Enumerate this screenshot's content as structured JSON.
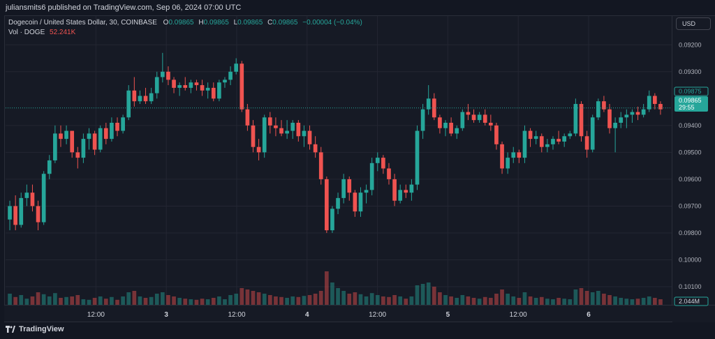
{
  "header": {
    "published": "juliansmits6 published on TradingView.com, Sep 06, 2024 07:00 UTC"
  },
  "legend": {
    "symbol": "Dogecoin / United States Dollar, 30, COINBASE",
    "o_label": "O",
    "o_value": "0.09865",
    "h_label": "H",
    "h_value": "0.09865",
    "l_label": "L",
    "l_value": "0.09865",
    "c_label": "C",
    "c_value": "0.09865",
    "change": "−0.00004 (−0.04%)",
    "vol_label": "Vol · DOGE",
    "vol_value": "52.241K"
  },
  "currency_button": "USD",
  "price_axis": {
    "ticks": [
      "0.10100",
      "0.10000",
      "0.09800",
      "0.09700",
      "0.09600",
      "0.09500",
      "0.09400",
      "0.09300",
      "0.09200"
    ],
    "label_0875": "0.09875",
    "last_price": "0.09865",
    "countdown": "29:55",
    "volume_badge": "2.044M"
  },
  "time_axis": {
    "ticks": [
      "12:00",
      "3",
      "12:00",
      "4",
      "12:00",
      "5",
      "12:00",
      "6"
    ]
  },
  "brand": "TradingView",
  "colors": {
    "up": "#26a69a",
    "down": "#ef5350",
    "background": "#161a25",
    "grid": "#232632"
  },
  "chart_data": {
    "type": "candlestick",
    "title": "Dogecoin / United States Dollar, 30, COINBASE",
    "y_ticks": [
      0.092,
      0.093,
      0.094,
      0.095,
      0.096,
      0.097,
      0.098,
      0.1,
      0.101
    ],
    "ylim": [
      0.0913,
      0.1015
    ],
    "x_tick_labels": [
      "12:00",
      "3",
      "12:00",
      "4",
      "12:00",
      "5",
      "12:00",
      "6"
    ],
    "x_tick_index": [
      12,
      36,
      60,
      84,
      108,
      132,
      156,
      180
    ],
    "last_price": 0.09865,
    "grid": true,
    "candles": [
      [
        0.0945,
        0.0952,
        0.0941,
        0.095,
        40
      ],
      [
        0.095,
        0.0954,
        0.0941,
        0.0943,
        28
      ],
      [
        0.0943,
        0.0955,
        0.0942,
        0.0953,
        35
      ],
      [
        0.0953,
        0.0958,
        0.095,
        0.0955,
        22
      ],
      [
        0.0955,
        0.0958,
        0.0948,
        0.095,
        30
      ],
      [
        0.095,
        0.0952,
        0.0941,
        0.0944,
        45
      ],
      [
        0.0944,
        0.0963,
        0.0943,
        0.0962,
        38
      ],
      [
        0.0962,
        0.0969,
        0.096,
        0.0967,
        30
      ],
      [
        0.0967,
        0.098,
        0.0966,
        0.0977,
        42
      ],
      [
        0.0977,
        0.098,
        0.0972,
        0.0975,
        25
      ],
      [
        0.0975,
        0.098,
        0.0973,
        0.0978,
        28
      ],
      [
        0.0978,
        0.0978,
        0.0968,
        0.097,
        30
      ],
      [
        0.097,
        0.0972,
        0.0964,
        0.0968,
        35
      ],
      [
        0.0968,
        0.0977,
        0.0966,
        0.0975,
        20
      ],
      [
        0.0975,
        0.0979,
        0.0971,
        0.0977,
        18
      ],
      [
        0.0977,
        0.0978,
        0.0969,
        0.0971,
        25
      ],
      [
        0.0971,
        0.098,
        0.097,
        0.0979,
        30
      ],
      [
        0.0979,
        0.0981,
        0.0973,
        0.0975,
        22
      ],
      [
        0.0975,
        0.0983,
        0.0974,
        0.0981,
        28
      ],
      [
        0.0981,
        0.0983,
        0.0976,
        0.0978,
        18
      ],
      [
        0.0978,
        0.0984,
        0.0977,
        0.0983,
        30
      ],
      [
        0.0983,
        0.0995,
        0.0982,
        0.0993,
        45
      ],
      [
        0.0993,
        0.0998,
        0.0987,
        0.0989,
        50
      ],
      [
        0.0989,
        0.0993,
        0.0988,
        0.0991,
        30
      ],
      [
        0.0991,
        0.0994,
        0.0988,
        0.0989,
        25
      ],
      [
        0.0989,
        0.0994,
        0.0988,
        0.0992,
        28
      ],
      [
        0.0992,
        0.1,
        0.099,
        0.0998,
        40
      ],
      [
        0.0998,
        0.1007,
        0.0996,
        0.1,
        45
      ],
      [
        0.1,
        0.1002,
        0.0995,
        0.0997,
        35
      ],
      [
        0.0997,
        0.0998,
        0.0992,
        0.0994,
        30
      ],
      [
        0.0994,
        0.0996,
        0.0991,
        0.0995,
        25
      ],
      [
        0.0995,
        0.0998,
        0.0993,
        0.0994,
        22
      ],
      [
        0.0994,
        0.0997,
        0.0992,
        0.0996,
        20
      ],
      [
        0.0996,
        0.0997,
        0.0993,
        0.0995,
        18
      ],
      [
        0.0995,
        0.0997,
        0.0991,
        0.0993,
        22
      ],
      [
        0.0993,
        0.0996,
        0.099,
        0.0994,
        20
      ],
      [
        0.0994,
        0.0996,
        0.0989,
        0.099,
        25
      ],
      [
        0.099,
        0.0997,
        0.0989,
        0.0996,
        30
      ],
      [
        0.0996,
        0.0998,
        0.0994,
        0.0997,
        20
      ],
      [
        0.0997,
        0.1002,
        0.0995,
        0.1,
        35
      ],
      [
        0.1,
        0.1005,
        0.0999,
        0.1003,
        40
      ],
      [
        0.1003,
        0.1004,
        0.0985,
        0.0986,
        60
      ],
      [
        0.0986,
        0.0988,
        0.0978,
        0.098,
        55
      ],
      [
        0.098,
        0.0982,
        0.097,
        0.0972,
        50
      ],
      [
        0.0972,
        0.0975,
        0.0967,
        0.097,
        45
      ],
      [
        0.097,
        0.0984,
        0.0968,
        0.0983,
        40
      ],
      [
        0.0983,
        0.0985,
        0.0977,
        0.098,
        35
      ],
      [
        0.098,
        0.0983,
        0.0976,
        0.0979,
        30
      ],
      [
        0.0979,
        0.0982,
        0.0976,
        0.0977,
        28
      ],
      [
        0.0977,
        0.0982,
        0.0975,
        0.0978,
        25
      ],
      [
        0.0978,
        0.0982,
        0.0975,
        0.0981,
        30
      ],
      [
        0.0981,
        0.0982,
        0.0974,
        0.0976,
        28
      ],
      [
        0.0976,
        0.098,
        0.0972,
        0.0978,
        32
      ],
      [
        0.0978,
        0.098,
        0.0971,
        0.0973,
        35
      ],
      [
        0.0973,
        0.0976,
        0.0968,
        0.097,
        40
      ],
      [
        0.097,
        0.0972,
        0.0958,
        0.096,
        50
      ],
      [
        0.096,
        0.0961,
        0.094,
        0.0941,
        120
      ],
      [
        0.0941,
        0.095,
        0.094,
        0.0949,
        80
      ],
      [
        0.0949,
        0.0955,
        0.0947,
        0.0953,
        60
      ],
      [
        0.0953,
        0.0962,
        0.0951,
        0.096,
        50
      ],
      [
        0.096,
        0.0961,
        0.0952,
        0.0955,
        40
      ],
      [
        0.0955,
        0.0956,
        0.0946,
        0.0948,
        45
      ],
      [
        0.0948,
        0.0957,
        0.0946,
        0.0955,
        38
      ],
      [
        0.0955,
        0.0958,
        0.0951,
        0.0956,
        30
      ],
      [
        0.0956,
        0.0968,
        0.0954,
        0.0966,
        42
      ],
      [
        0.0966,
        0.097,
        0.0963,
        0.0968,
        35
      ],
      [
        0.0968,
        0.0969,
        0.0962,
        0.0964,
        30
      ],
      [
        0.0964,
        0.0966,
        0.0958,
        0.096,
        28
      ],
      [
        0.096,
        0.0962,
        0.095,
        0.0952,
        35
      ],
      [
        0.0952,
        0.0958,
        0.0951,
        0.0956,
        30
      ],
      [
        0.0956,
        0.0958,
        0.0953,
        0.0955,
        22
      ],
      [
        0.0955,
        0.096,
        0.0952,
        0.0958,
        30
      ],
      [
        0.0958,
        0.098,
        0.0956,
        0.0978,
        70
      ],
      [
        0.0978,
        0.0988,
        0.0975,
        0.0986,
        75
      ],
      [
        0.0986,
        0.0995,
        0.0984,
        0.099,
        80
      ],
      [
        0.099,
        0.0992,
        0.0982,
        0.0983,
        65
      ],
      [
        0.0983,
        0.0984,
        0.0977,
        0.0979,
        45
      ],
      [
        0.0979,
        0.0982,
        0.0976,
        0.0981,
        35
      ],
      [
        0.0981,
        0.0983,
        0.0976,
        0.0977,
        30
      ],
      [
        0.0977,
        0.098,
        0.0975,
        0.0979,
        25
      ],
      [
        0.0979,
        0.0986,
        0.0978,
        0.0985,
        35
      ],
      [
        0.0985,
        0.0988,
        0.0982,
        0.0984,
        30
      ],
      [
        0.0984,
        0.0986,
        0.0981,
        0.0982,
        25
      ],
      [
        0.0982,
        0.0985,
        0.0981,
        0.0984,
        22
      ],
      [
        0.0984,
        0.0986,
        0.098,
        0.0981,
        28
      ],
      [
        0.0981,
        0.0984,
        0.0978,
        0.098,
        25
      ],
      [
        0.098,
        0.0981,
        0.0971,
        0.0973,
        40
      ],
      [
        0.0973,
        0.0974,
        0.0962,
        0.0964,
        55
      ],
      [
        0.0964,
        0.097,
        0.0962,
        0.0968,
        40
      ],
      [
        0.0968,
        0.0972,
        0.0966,
        0.097,
        30
      ],
      [
        0.097,
        0.0971,
        0.0966,
        0.0968,
        25
      ],
      [
        0.0968,
        0.098,
        0.0966,
        0.0978,
        45
      ],
      [
        0.0978,
        0.0979,
        0.0972,
        0.0975,
        30
      ],
      [
        0.0975,
        0.0978,
        0.0973,
        0.0976,
        25
      ],
      [
        0.0976,
        0.0977,
        0.097,
        0.0972,
        28
      ],
      [
        0.0972,
        0.0975,
        0.097,
        0.0973,
        22
      ],
      [
        0.0973,
        0.0976,
        0.0971,
        0.0975,
        20
      ],
      [
        0.0975,
        0.0978,
        0.0973,
        0.0974,
        25
      ],
      [
        0.0974,
        0.0977,
        0.0972,
        0.0976,
        22
      ],
      [
        0.0976,
        0.0978,
        0.0975,
        0.0977,
        20
      ],
      [
        0.0977,
        0.099,
        0.0976,
        0.0988,
        55
      ],
      [
        0.0988,
        0.0989,
        0.0974,
        0.0976,
        60
      ],
      [
        0.0976,
        0.0978,
        0.0968,
        0.0971,
        50
      ],
      [
        0.0971,
        0.0984,
        0.097,
        0.0983,
        45
      ],
      [
        0.0983,
        0.099,
        0.0982,
        0.0989,
        50
      ],
      [
        0.0989,
        0.0991,
        0.0985,
        0.0986,
        40
      ],
      [
        0.0986,
        0.0988,
        0.0977,
        0.0979,
        35
      ],
      [
        0.0979,
        0.0983,
        0.097,
        0.0981,
        30
      ],
      [
        0.0981,
        0.0985,
        0.0979,
        0.0983,
        25
      ],
      [
        0.0983,
        0.0986,
        0.0979,
        0.0984,
        22
      ],
      [
        0.0984,
        0.0986,
        0.0981,
        0.0985,
        20
      ],
      [
        0.0985,
        0.0987,
        0.0982,
        0.0984,
        22
      ],
      [
        0.0984,
        0.0988,
        0.0983,
        0.0986,
        25
      ],
      [
        0.0986,
        0.0993,
        0.0985,
        0.0991,
        30
      ],
      [
        0.0991,
        0.0992,
        0.0986,
        0.0988,
        25
      ],
      [
        0.0988,
        0.0989,
        0.0984,
        0.0986,
        20
      ]
    ],
    "volume_axis_last": "2.044M"
  }
}
